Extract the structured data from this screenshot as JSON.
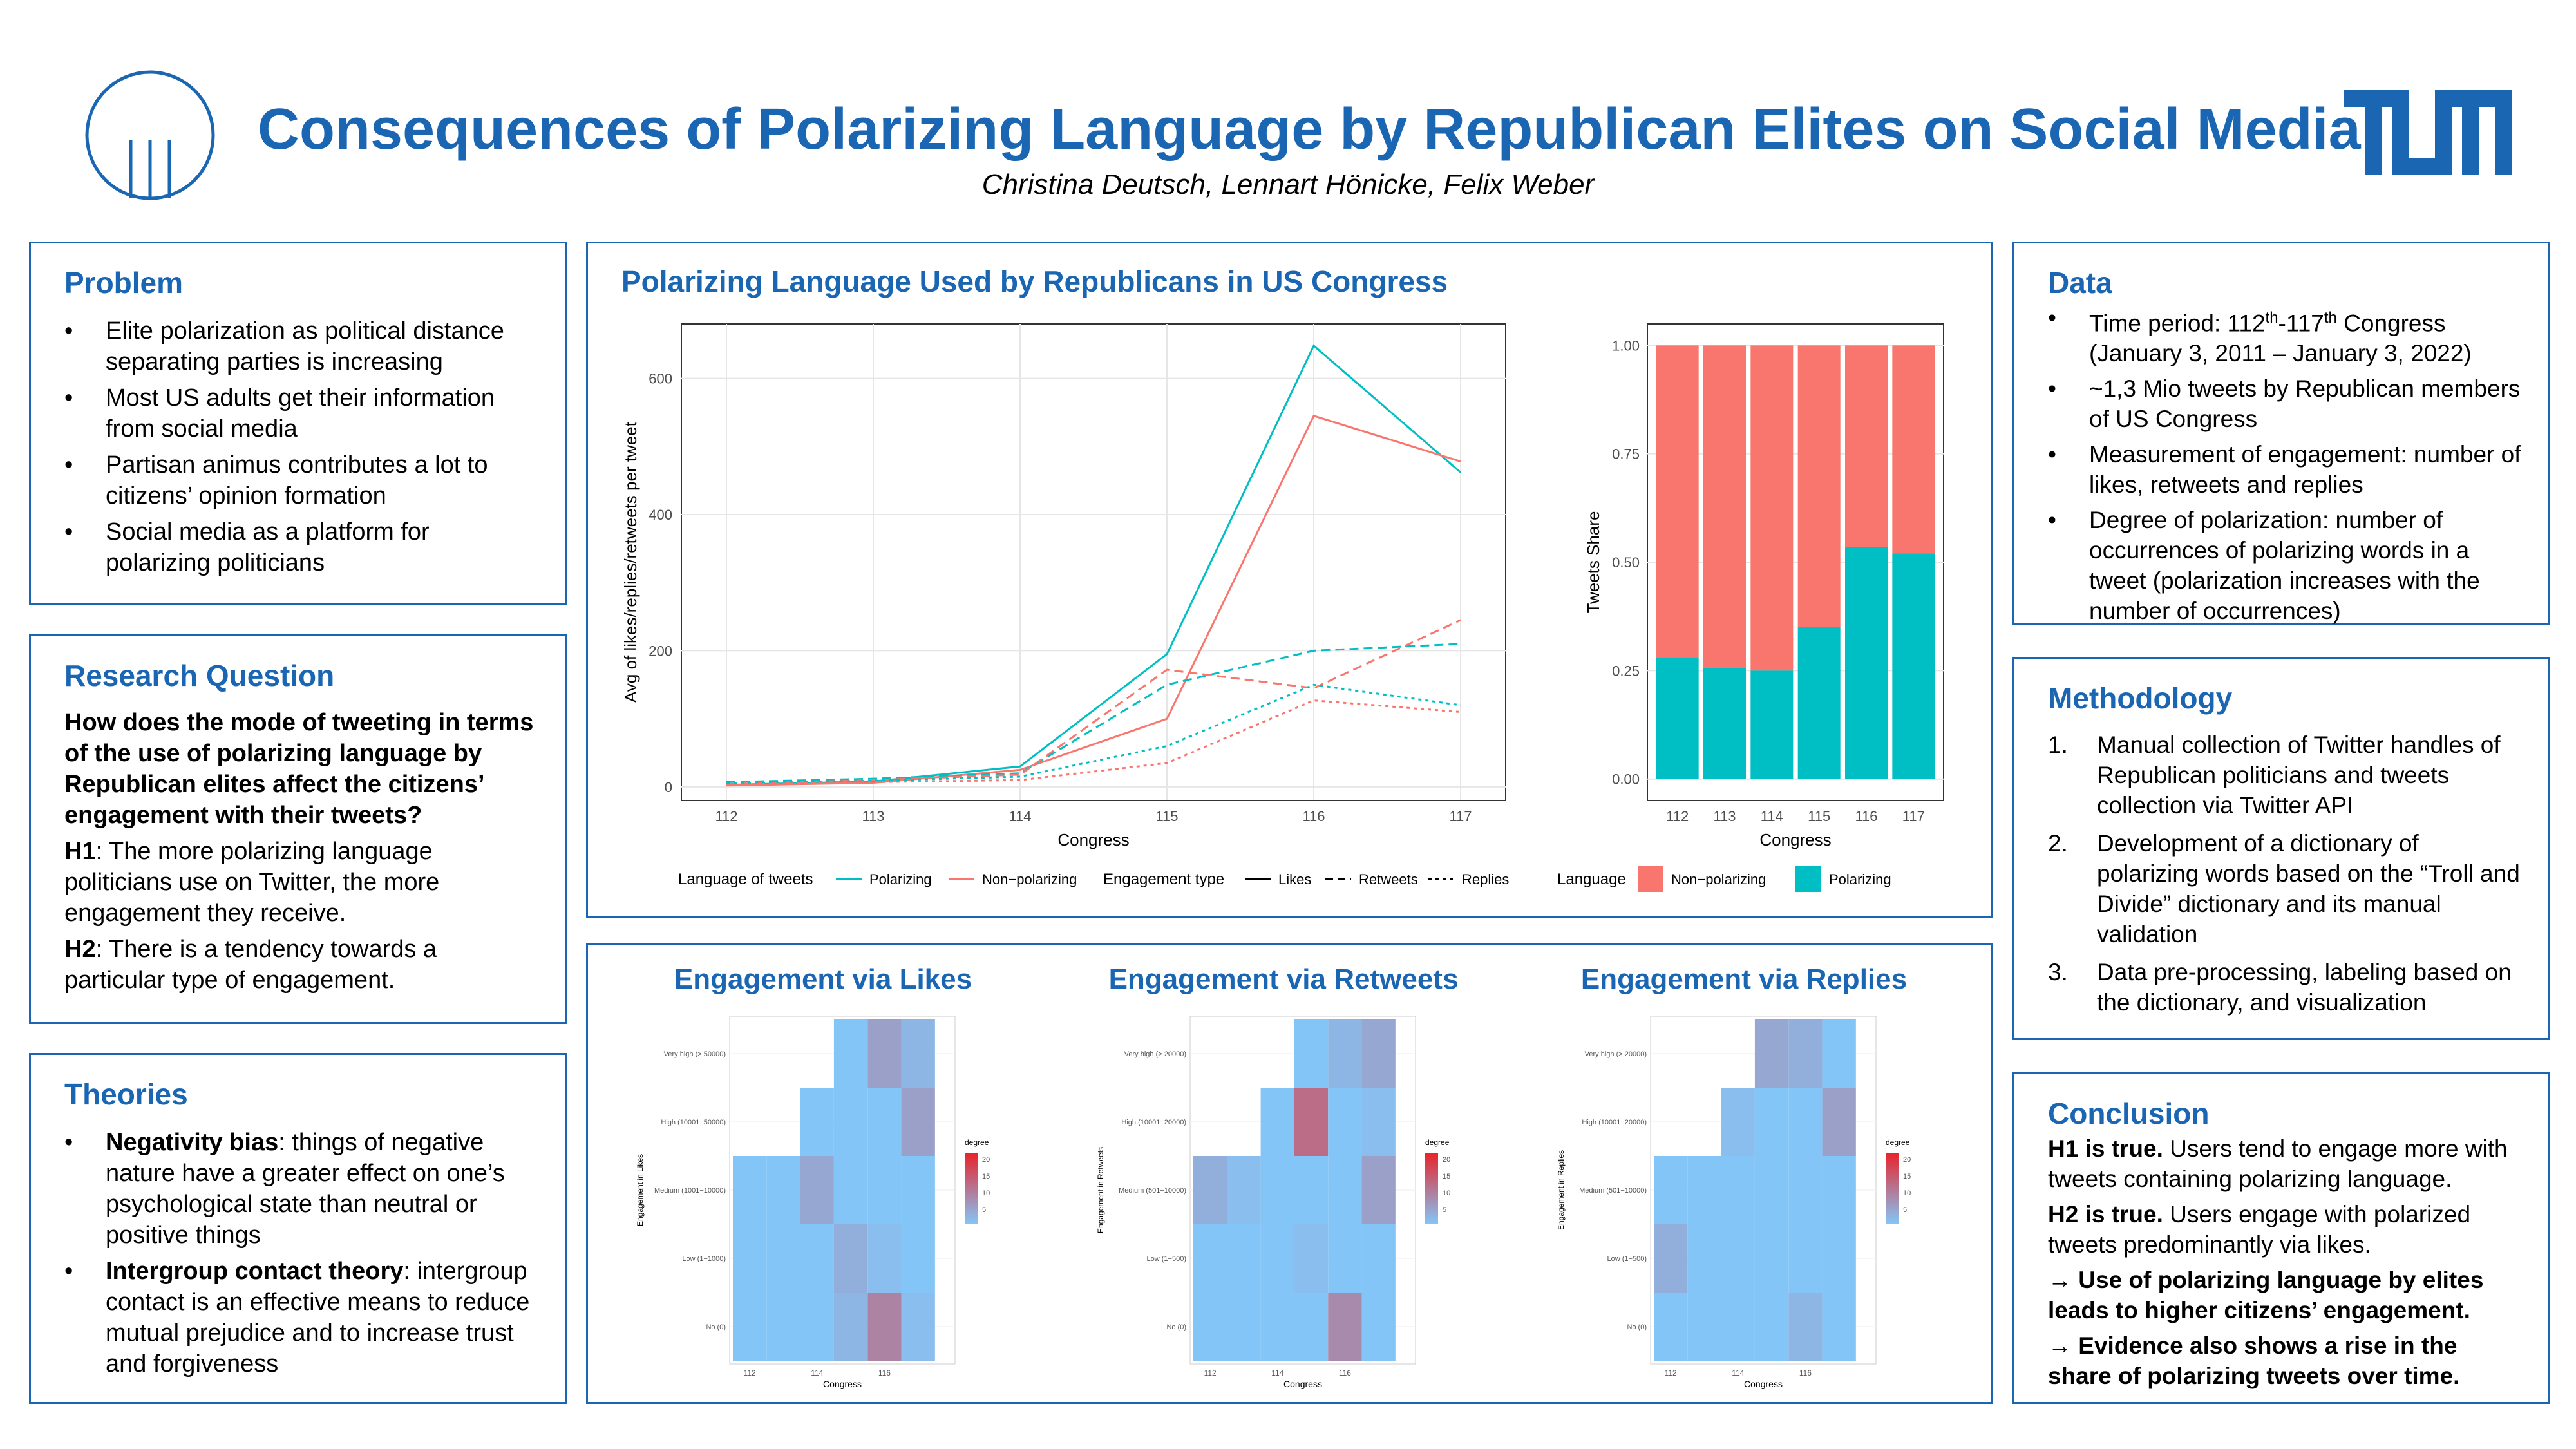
{
  "title": "Consequences of Polarizing Language by Republican Elites on Social Media",
  "authors": "Christina Deutsch, Lennart Hönicke, Felix Weber",
  "problem": {
    "title": "Problem",
    "items": [
      "Elite polarization as political distance separating parties is increasing",
      "Most US adults get their information from social media",
      "Partisan animus contributes a lot to citizens’ opinion formation",
      "Social media as a platform for polarizing politicians"
    ]
  },
  "research": {
    "title": "Research Question",
    "question": "How does the mode of tweeting in terms of the use of polarizing language by Republican elites affect the citizens’ engagement with their tweets?",
    "h1_label": "H1",
    "h1_text": ": The more polarizing language politicians use on Twitter, the more engagement they receive.",
    "h2_label": "H2",
    "h2_text": ": There is a tendency towards a particular type of engagement."
  },
  "theories": {
    "title": "Theories",
    "items": [
      {
        "bold": "Negativity bias",
        "text": ": things of negative nature have a greater effect on one’s psychological state than neutral or positive things"
      },
      {
        "bold": "Intergroup contact theory",
        "text": ": intergroup contact is an effective means to reduce mutual prejudice and to increase trust and forgiveness"
      }
    ]
  },
  "data": {
    "title": "Data",
    "time_pre": "Time period: 112",
    "time_sup1": "th",
    "time_mid": "-117",
    "time_sup2": "th",
    "time_post": " Congress (January 3, 2011 – January 3, 2022)",
    "items": [
      "~1,3 Mio tweets by Republican members of US Congress",
      "Measurement of engagement: number of likes, retweets and replies",
      "Degree of polarization: number of occurrences of polarizing words in a tweet (polarization increases with the number of occurrences)"
    ]
  },
  "methodology": {
    "title": "Methodology",
    "items": [
      {
        "num": "1.",
        "text": "Manual collection of Twitter handles of Republican politicians and tweets collection via Twitter API"
      },
      {
        "num": "2.",
        "text": "Development of a dictionary of polarizing words based on the “Troll and Divide” dictionary and its manual validation"
      },
      {
        "num": "3.",
        "text": "Data pre-processing, labeling based on the dictionary, and visualization"
      }
    ]
  },
  "conclusion": {
    "title": "Conclusion",
    "h1_bold": "H1 is true.",
    "h1_text": " Users tend to engage more with tweets containing polarizing language.",
    "h2_bold": "H2 is true.",
    "h2_text": " Users engage with polarized tweets predominantly via likes.",
    "arrow1": "→ Use of polarizing language by elites leads to higher citizens’ engagement.",
    "arrow2": "→ Evidence also shows a rise in the share of polarizing tweets over time."
  },
  "chart_panel_title": "Polarizing Language Used by Republicans in US Congress",
  "heatmap_titles": [
    "Engagement via Likes",
    "Engagement via Retweets",
    "Engagement via Replies"
  ],
  "colors": {
    "accent": "#1a66b3",
    "polarizing": "#00bfc4",
    "non_polarizing": "#f8766d",
    "heat_low": "#84c5f7",
    "heat_high": "#e8232a"
  },
  "chart_data": [
    {
      "type": "line",
      "x": [
        112,
        113,
        114,
        115,
        116,
        117
      ],
      "xlabel": "Congress",
      "ylabel": "Avg of likes/replies/retweets per tweet",
      "ylim": [
        -20,
        680
      ],
      "yticks": [
        0,
        200,
        400,
        600
      ],
      "grid": true,
      "legend": {
        "language_title": "Language of tweets",
        "language_items": [
          "Polarizing",
          "Non−polarizing"
        ],
        "engagement_title": "Engagement type",
        "engagement_items": [
          "Likes",
          "Retweets",
          "Replies"
        ]
      },
      "series": [
        {
          "language": "Polarizing",
          "engagement": "Likes",
          "values": [
            3,
            8,
            30,
            195,
            648,
            462
          ]
        },
        {
          "language": "Non−polarizing",
          "engagement": "Likes",
          "values": [
            2,
            6,
            25,
            100,
            545,
            478
          ]
        },
        {
          "language": "Polarizing",
          "engagement": "Retweets",
          "values": [
            7,
            12,
            20,
            150,
            200,
            210
          ]
        },
        {
          "language": "Non−polarizing",
          "engagement": "Retweets",
          "values": [
            4,
            10,
            18,
            172,
            145,
            245
          ]
        },
        {
          "language": "Polarizing",
          "engagement": "Replies",
          "values": [
            5,
            9,
            15,
            60,
            150,
            120
          ]
        },
        {
          "language": "Non−polarizing",
          "engagement": "Replies",
          "values": [
            3,
            7,
            10,
            35,
            127,
            110
          ]
        }
      ]
    },
    {
      "type": "bar",
      "stacked": true,
      "categories": [
        "112",
        "113",
        "114",
        "115",
        "116",
        "117"
      ],
      "xlabel": "Congress",
      "ylabel": "Tweets Share",
      "ylim": [
        0,
        1
      ],
      "yticks": [
        "0.00",
        "0.25",
        "0.50",
        "0.75",
        "1.00"
      ],
      "legend_title": "Language",
      "series": [
        {
          "name": "Non−polarizing",
          "values": [
            0.72,
            0.745,
            0.75,
            0.65,
            0.465,
            0.48
          ]
        },
        {
          "name": "Polarizing",
          "values": [
            0.28,
            0.255,
            0.25,
            0.35,
            0.535,
            0.52
          ]
        }
      ]
    },
    {
      "type": "heatmap",
      "title": "Engagement via Likes",
      "xlabel": "Congress",
      "ylabel": "Engagement in Likes",
      "xticks": [
        "112",
        "114",
        "116"
      ],
      "yticks": [
        "No (0)",
        "Low (1−1000)",
        "Medium (1001−10000)",
        "High (10001−50000)",
        "Very high (> 50000)"
      ],
      "legend_title": "degree",
      "legend_ticks": [
        "20",
        "15",
        "10",
        "5"
      ],
      "cells": [
        {
          "x": 1,
          "y": 0,
          "d": 3
        },
        {
          "x": 2,
          "y": 0,
          "d": 3
        },
        {
          "x": 3,
          "y": 0,
          "d": 3
        },
        {
          "x": 4,
          "y": 0,
          "d": 5
        },
        {
          "x": 5,
          "y": 0,
          "d": 12
        },
        {
          "x": 6,
          "y": 0,
          "d": 4
        },
        {
          "x": 1,
          "y": 1,
          "d": 3
        },
        {
          "x": 2,
          "y": 1,
          "d": 3
        },
        {
          "x": 3,
          "y": 1,
          "d": 3
        },
        {
          "x": 4,
          "y": 1,
          "d": 6
        },
        {
          "x": 5,
          "y": 1,
          "d": 4
        },
        {
          "x": 6,
          "y": 1,
          "d": 3
        },
        {
          "x": 1,
          "y": 2,
          "d": 3
        },
        {
          "x": 2,
          "y": 2,
          "d": 3
        },
        {
          "x": 3,
          "y": 2,
          "d": 7
        },
        {
          "x": 4,
          "y": 2,
          "d": 3
        },
        {
          "x": 5,
          "y": 2,
          "d": 3
        },
        {
          "x": 6,
          "y": 2,
          "d": 3
        },
        {
          "x": 3,
          "y": 3,
          "d": 3
        },
        {
          "x": 4,
          "y": 3,
          "d": 3
        },
        {
          "x": 5,
          "y": 3,
          "d": 3
        },
        {
          "x": 6,
          "y": 3,
          "d": 8
        },
        {
          "x": 4,
          "y": 4,
          "d": 3
        },
        {
          "x": 5,
          "y": 4,
          "d": 8
        },
        {
          "x": 6,
          "y": 4,
          "d": 5
        }
      ]
    },
    {
      "type": "heatmap",
      "title": "Engagement via Retweets",
      "xlabel": "Congress",
      "ylabel": "Engagement in Retweets",
      "xticks": [
        "112",
        "114",
        "116"
      ],
      "yticks": [
        "No (0)",
        "Low (1−500)",
        "Medium (501−10000)",
        "High (10001−20000)",
        "Very high (> 20000)"
      ],
      "legend_title": "degree",
      "legend_ticks": [
        "20",
        "15",
        "10",
        "5"
      ],
      "cells": [
        {
          "x": 1,
          "y": 0,
          "d": 3
        },
        {
          "x": 2,
          "y": 0,
          "d": 3
        },
        {
          "x": 3,
          "y": 0,
          "d": 3
        },
        {
          "x": 4,
          "y": 0,
          "d": 3
        },
        {
          "x": 5,
          "y": 0,
          "d": 11
        },
        {
          "x": 6,
          "y": 0,
          "d": 3
        },
        {
          "x": 1,
          "y": 1,
          "d": 3
        },
        {
          "x": 2,
          "y": 1,
          "d": 3
        },
        {
          "x": 3,
          "y": 1,
          "d": 3
        },
        {
          "x": 4,
          "y": 1,
          "d": 4
        },
        {
          "x": 5,
          "y": 1,
          "d": 3
        },
        {
          "x": 6,
          "y": 1,
          "d": 3
        },
        {
          "x": 1,
          "y": 2,
          "d": 6
        },
        {
          "x": 2,
          "y": 2,
          "d": 4
        },
        {
          "x": 3,
          "y": 2,
          "d": 3
        },
        {
          "x": 4,
          "y": 2,
          "d": 3
        },
        {
          "x": 5,
          "y": 2,
          "d": 3
        },
        {
          "x": 6,
          "y": 2,
          "d": 8
        },
        {
          "x": 3,
          "y": 3,
          "d": 3
        },
        {
          "x": 4,
          "y": 3,
          "d": 15
        },
        {
          "x": 5,
          "y": 3,
          "d": 3
        },
        {
          "x": 6,
          "y": 3,
          "d": 4
        },
        {
          "x": 4,
          "y": 4,
          "d": 3
        },
        {
          "x": 5,
          "y": 4,
          "d": 5
        },
        {
          "x": 6,
          "y": 4,
          "d": 7
        }
      ]
    },
    {
      "type": "heatmap",
      "title": "Engagement via Replies",
      "xlabel": "Congress",
      "ylabel": "Engagement in Replies",
      "xticks": [
        "112",
        "114",
        "116"
      ],
      "yticks": [
        "No (0)",
        "Low (1−500)",
        "Medium (501−10000)",
        "High (10001−20000)",
        "Very high (> 20000)"
      ],
      "legend_title": "degree",
      "legend_ticks": [
        "20",
        "15",
        "10",
        "5"
      ],
      "cells": [
        {
          "x": 1,
          "y": 0,
          "d": 3
        },
        {
          "x": 2,
          "y": 0,
          "d": 3
        },
        {
          "x": 3,
          "y": 0,
          "d": 3
        },
        {
          "x": 4,
          "y": 0,
          "d": 3
        },
        {
          "x": 5,
          "y": 0,
          "d": 5
        },
        {
          "x": 6,
          "y": 0,
          "d": 3
        },
        {
          "x": 1,
          "y": 1,
          "d": 6
        },
        {
          "x": 2,
          "y": 1,
          "d": 3
        },
        {
          "x": 3,
          "y": 1,
          "d": 3
        },
        {
          "x": 4,
          "y": 1,
          "d": 3
        },
        {
          "x": 5,
          "y": 1,
          "d": 3
        },
        {
          "x": 6,
          "y": 1,
          "d": 3
        },
        {
          "x": 1,
          "y": 2,
          "d": 3
        },
        {
          "x": 2,
          "y": 2,
          "d": 3
        },
        {
          "x": 3,
          "y": 2,
          "d": 3
        },
        {
          "x": 4,
          "y": 2,
          "d": 3
        },
        {
          "x": 5,
          "y": 2,
          "d": 3
        },
        {
          "x": 6,
          "y": 2,
          "d": 3
        },
        {
          "x": 3,
          "y": 3,
          "d": 4
        },
        {
          "x": 4,
          "y": 3,
          "d": 3
        },
        {
          "x": 5,
          "y": 3,
          "d": 3
        },
        {
          "x": 6,
          "y": 3,
          "d": 8
        },
        {
          "x": 4,
          "y": 4,
          "d": 7
        },
        {
          "x": 5,
          "y": 4,
          "d": 6
        },
        {
          "x": 6,
          "y": 4,
          "d": 3
        }
      ]
    }
  ]
}
